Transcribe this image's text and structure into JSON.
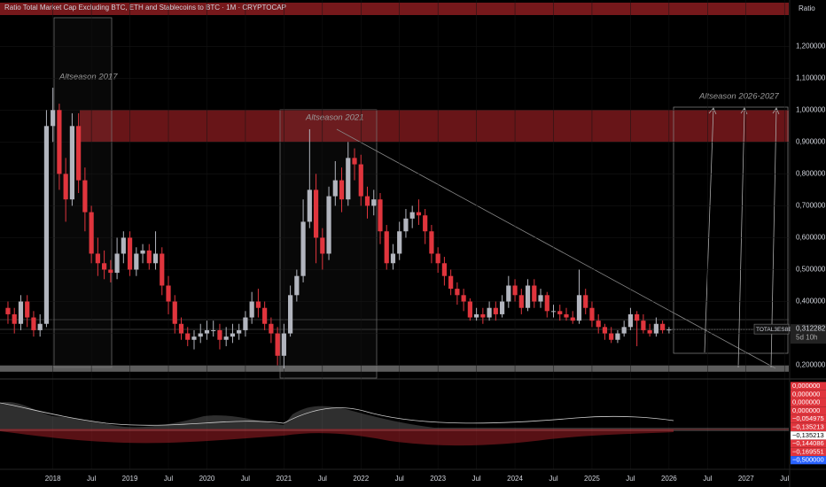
{
  "chart_data": {
    "type": "candlestick",
    "title": "Ratio Total Market Cap Excluding BTC, ETH and Stablecoins to BTC · 1M · CRYPTOCAP",
    "axis_label": "Ratio",
    "symbol": "TOTAL3ES8BTC",
    "last_price": {
      "value": 0.312282,
      "label": "0,312282"
    },
    "countdown": "5d 10h",
    "annotations": [
      "Altseason 2017",
      "Altseason 2021",
      "Altseason 2026-2027"
    ],
    "up_color": "#b2b5be",
    "down_color": "#e0353d",
    "resistance_zone": [
      0.9,
      1.0
    ],
    "support_zone": [
      0.18,
      0.2
    ],
    "open": [
      0.38,
      0.36,
      0.33,
      0.4,
      0.35,
      0.31,
      0.33,
      0.95,
      1.0,
      0.8,
      0.72,
      0.95,
      0.78,
      0.68,
      0.55,
      0.52,
      0.5,
      0.49,
      0.55,
      0.6,
      0.5,
      0.55,
      0.56,
      0.52,
      0.55,
      0.45,
      0.4,
      0.33,
      0.3,
      0.28,
      0.29,
      0.3,
      0.31,
      0.31,
      0.28,
      0.29,
      0.3,
      0.31,
      0.35,
      0.4,
      0.38,
      0.33,
      0.3,
      0.23,
      0.3,
      0.42,
      0.48,
      0.65,
      0.75,
      0.6,
      0.55,
      0.73,
      0.78,
      0.72,
      0.85,
      0.83,
      0.73,
      0.7,
      0.72,
      0.62,
      0.52,
      0.55,
      0.62,
      0.66,
      0.68,
      0.67,
      0.62,
      0.55,
      0.52,
      0.48,
      0.44,
      0.42,
      0.4,
      0.35,
      0.36,
      0.35,
      0.38,
      0.36,
      0.4,
      0.45,
      0.42,
      0.38,
      0.45,
      0.4,
      0.42,
      0.37,
      0.37,
      0.36,
      0.35,
      0.34,
      0.42,
      0.38,
      0.34,
      0.32,
      0.3,
      0.28,
      0.3,
      0.32,
      0.36,
      0.34,
      0.31,
      0.3,
      0.33,
      0.31
    ],
    "high": [
      0.4,
      0.38,
      0.42,
      0.42,
      0.37,
      0.36,
      1.0,
      1.07,
      1.02,
      0.85,
      0.99,
      0.99,
      0.82,
      0.7,
      0.6,
      0.56,
      0.53,
      0.6,
      0.62,
      0.62,
      0.57,
      0.58,
      0.58,
      0.62,
      0.57,
      0.48,
      0.42,
      0.35,
      0.32,
      0.31,
      0.33,
      0.34,
      0.34,
      0.33,
      0.32,
      0.33,
      0.33,
      0.37,
      0.43,
      0.44,
      0.4,
      0.35,
      0.32,
      0.33,
      0.45,
      0.5,
      0.72,
      0.94,
      0.8,
      0.63,
      0.76,
      0.84,
      0.82,
      0.9,
      0.88,
      0.86,
      0.76,
      0.75,
      0.74,
      0.64,
      0.58,
      0.65,
      0.69,
      0.7,
      0.72,
      0.69,
      0.64,
      0.57,
      0.54,
      0.5,
      0.46,
      0.44,
      0.41,
      0.38,
      0.38,
      0.4,
      0.4,
      0.42,
      0.48,
      0.47,
      0.44,
      0.47,
      0.47,
      0.44,
      0.43,
      0.39,
      0.39,
      0.38,
      0.37,
      0.5,
      0.44,
      0.4,
      0.36,
      0.33,
      0.32,
      0.31,
      0.34,
      0.38,
      0.37,
      0.36,
      0.33,
      0.35,
      0.34,
      0.32
    ],
    "low": [
      0.33,
      0.3,
      0.31,
      0.32,
      0.29,
      0.29,
      0.32,
      0.9,
      0.75,
      0.65,
      0.7,
      0.74,
      0.62,
      0.52,
      0.48,
      0.47,
      0.46,
      0.47,
      0.52,
      0.48,
      0.48,
      0.52,
      0.5,
      0.5,
      0.42,
      0.36,
      0.3,
      0.28,
      0.26,
      0.25,
      0.27,
      0.28,
      0.29,
      0.25,
      0.26,
      0.27,
      0.28,
      0.29,
      0.33,
      0.35,
      0.31,
      0.27,
      0.2,
      0.19,
      0.29,
      0.4,
      0.46,
      0.63,
      0.52,
      0.5,
      0.53,
      0.7,
      0.68,
      0.7,
      0.78,
      0.7,
      0.66,
      0.67,
      0.58,
      0.5,
      0.5,
      0.53,
      0.6,
      0.63,
      0.64,
      0.58,
      0.52,
      0.49,
      0.45,
      0.42,
      0.39,
      0.37,
      0.34,
      0.34,
      0.33,
      0.34,
      0.34,
      0.35,
      0.38,
      0.4,
      0.36,
      0.37,
      0.38,
      0.38,
      0.35,
      0.35,
      0.34,
      0.34,
      0.33,
      0.33,
      0.36,
      0.32,
      0.3,
      0.28,
      0.27,
      0.27,
      0.29,
      0.31,
      0.26,
      0.3,
      0.29,
      0.29,
      0.3,
      0.3
    ],
    "close": [
      0.36,
      0.33,
      0.4,
      0.35,
      0.31,
      0.33,
      0.95,
      1.0,
      0.8,
      0.72,
      0.95,
      0.78,
      0.68,
      0.55,
      0.52,
      0.5,
      0.49,
      0.55,
      0.6,
      0.5,
      0.55,
      0.56,
      0.52,
      0.55,
      0.45,
      0.4,
      0.33,
      0.3,
      0.28,
      0.29,
      0.3,
      0.31,
      0.31,
      0.28,
      0.29,
      0.3,
      0.31,
      0.35,
      0.4,
      0.38,
      0.33,
      0.3,
      0.23,
      0.3,
      0.42,
      0.48,
      0.65,
      0.75,
      0.6,
      0.55,
      0.73,
      0.78,
      0.72,
      0.85,
      0.83,
      0.73,
      0.7,
      0.72,
      0.62,
      0.52,
      0.55,
      0.62,
      0.66,
      0.68,
      0.67,
      0.62,
      0.55,
      0.52,
      0.48,
      0.44,
      0.42,
      0.4,
      0.35,
      0.36,
      0.35,
      0.38,
      0.36,
      0.4,
      0.45,
      0.42,
      0.38,
      0.45,
      0.4,
      0.42,
      0.37,
      0.37,
      0.36,
      0.35,
      0.34,
      0.42,
      0.38,
      0.34,
      0.32,
      0.3,
      0.28,
      0.3,
      0.32,
      0.36,
      0.34,
      0.31,
      0.3,
      0.33,
      0.31,
      0.312282
    ],
    "xlim": [
      -1.24,
      121.8
    ],
    "xticks": [
      {
        "value": 7,
        "label": "2018"
      },
      {
        "value": 13,
        "label": "Jul"
      },
      {
        "value": 19,
        "label": "2019"
      },
      {
        "value": 25,
        "label": "Jul"
      },
      {
        "value": 31,
        "label": "2020"
      },
      {
        "value": 37,
        "label": "Jul"
      },
      {
        "value": 43,
        "label": "2021"
      },
      {
        "value": 49,
        "label": "Jul"
      },
      {
        "value": 55,
        "label": "2022"
      },
      {
        "value": 61,
        "label": "Jul"
      },
      {
        "value": 67,
        "label": "2023"
      },
      {
        "value": 73,
        "label": "Jul"
      },
      {
        "value": 79,
        "label": "2024"
      },
      {
        "value": 85,
        "label": "Jul"
      },
      {
        "value": 91,
        "label": "2025"
      },
      {
        "value": 97,
        "label": "Jul"
      },
      {
        "value": 103,
        "label": "2026"
      },
      {
        "value": 109,
        "label": "Jul"
      },
      {
        "value": 115,
        "label": "2027"
      },
      {
        "value": 121,
        "label": "Jul"
      }
    ],
    "ylim": [
      0.16,
      1.345
    ],
    "yticks": [
      {
        "value": 0.2,
        "label": "0,200000"
      },
      {
        "value": 0.3,
        "label": "0,300000"
      },
      {
        "value": 0.4,
        "label": "0,400000"
      },
      {
        "value": 0.5,
        "label": "0,500000"
      },
      {
        "value": 0.6,
        "label": "0,600000"
      },
      {
        "value": 0.7,
        "label": "0,700000"
      },
      {
        "value": 0.8,
        "label": "0,800000"
      },
      {
        "value": 0.9,
        "label": "0,900000"
      },
      {
        "value": 1.0,
        "label": "1,000000"
      },
      {
        "value": 1.1,
        "label": "1,100000"
      },
      {
        "value": 1.2,
        "label": "1,200000"
      }
    ],
    "indicator_labels": [
      {
        "value": 0,
        "label": "0,000000"
      },
      {
        "value": 0,
        "label": "0,000000"
      },
      {
        "value": 0,
        "label": "0,000000"
      },
      {
        "value": 0,
        "label": "0,000000"
      },
      {
        "value": -0.054975,
        "label": "−0,054975"
      },
      {
        "value": -0.135213,
        "label": "−0,135213"
      },
      {
        "value": -0.135213,
        "label": "−0,135213"
      },
      {
        "value": -0.144086,
        "label": "−0,144086"
      },
      {
        "value": -0.169551,
        "label": "−0,169551"
      },
      {
        "value": -0.5,
        "label": "−0,500000"
      }
    ]
  }
}
